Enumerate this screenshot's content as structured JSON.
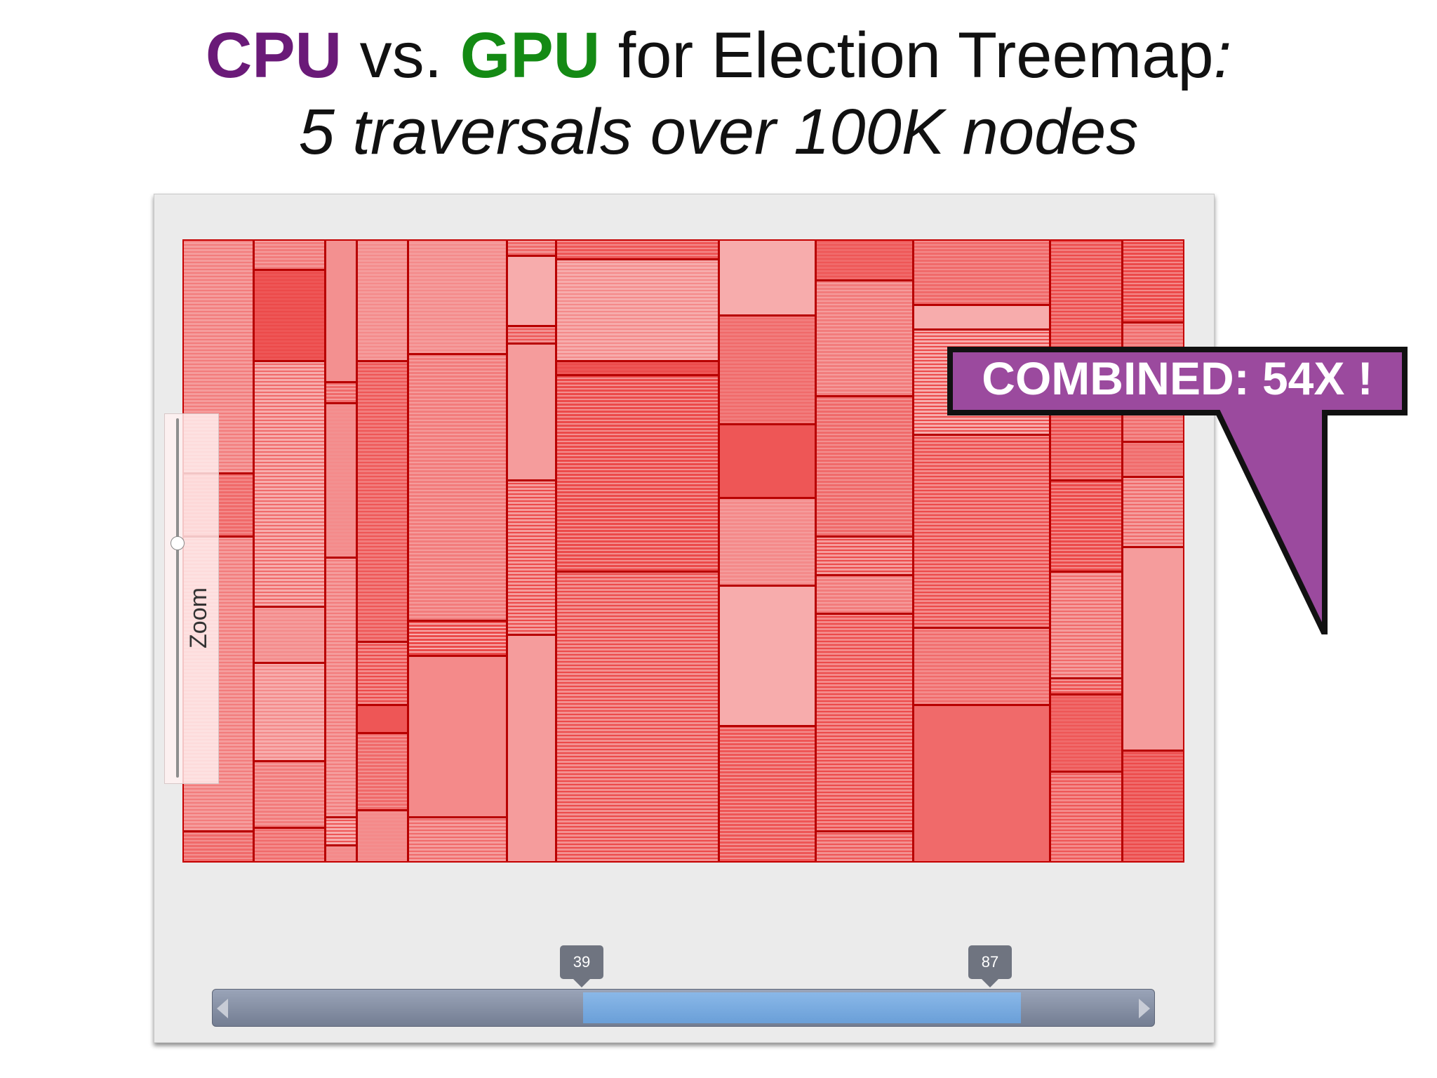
{
  "slide": {
    "title_cpu": "CPU",
    "title_vs": "vs.",
    "title_gpu": "GPU",
    "title_rest": "for Election Treemap",
    "title_colon": ":",
    "subtitle": "5 traversals over 100K nodes"
  },
  "colors": {
    "cpu": "#6a1a78",
    "gpu": "#148a14",
    "callout_fill": "#9b4a9e",
    "treemap_border": "#b80000"
  },
  "app": {
    "zoom_label": "Zoom",
    "zoom_level": 0.67,
    "range": {
      "low_label": "39",
      "high_label": "87",
      "left_arrow_icon": "left-arrow-icon",
      "right_arrow_icon": "right-arrow-icon"
    }
  },
  "callout": {
    "text": "COMBINED: 54X !"
  }
}
